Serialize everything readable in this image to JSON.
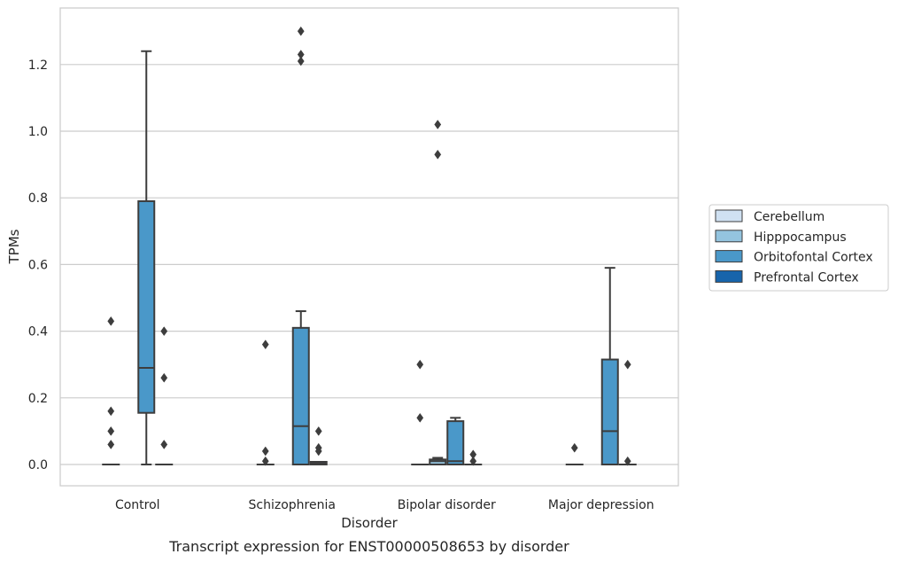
{
  "chart_data": {
    "type": "boxplot",
    "xlabel": "Disorder",
    "ylabel": "TPMs",
    "caption": "Transcript expression for ENST00000508653 by disorder",
    "categories": [
      "Control",
      "Schizophrenia",
      "Bipolar disorder",
      "Major depression"
    ],
    "ylim": [
      -0.065,
      1.365
    ],
    "yticks": [
      0.0,
      0.2,
      0.4,
      0.6,
      0.8,
      1.0,
      1.2
    ],
    "ytick_labels": [
      "0.0",
      "0.2",
      "0.4",
      "0.6",
      "0.8",
      "1.0",
      "1.2"
    ],
    "grid": "horizontal",
    "legend_position": "right",
    "series": [
      {
        "name": "Cerebellum",
        "color": "#d0e1f2",
        "boxes": [
          {
            "q1": 0,
            "median": 0,
            "q3": 0,
            "whisker_low": 0,
            "whisker_high": 0,
            "outliers": [
              0.43,
              0.16,
              0.1,
              0.06
            ]
          },
          {
            "q1": 0,
            "median": 0,
            "q3": 0,
            "whisker_low": 0,
            "whisker_high": 0,
            "outliers": [
              0.36,
              0.04,
              0.01
            ]
          },
          {
            "q1": 0,
            "median": 0,
            "q3": 0,
            "whisker_low": 0,
            "whisker_high": 0,
            "outliers": [
              0.3,
              0.14
            ]
          },
          {
            "q1": 0,
            "median": 0,
            "q3": 0,
            "whisker_low": 0,
            "whisker_high": 0,
            "outliers": [
              0.05
            ]
          }
        ]
      },
      {
        "name": "Hipppocampus",
        "color": "#94c4df",
        "boxes": [
          null,
          null,
          {
            "q1": 0,
            "median": 0.01,
            "q3": 0.015,
            "whisker_low": 0,
            "whisker_high": 0.02,
            "outliers": [
              1.02,
              0.93
            ]
          },
          null
        ]
      },
      {
        "name": "Orbitofontal Cortex",
        "color": "#4a98c9",
        "boxes": [
          {
            "q1": 0.155,
            "median": 0.29,
            "q3": 0.79,
            "whisker_low": 0,
            "whisker_high": 1.24,
            "outliers": []
          },
          {
            "q1": 0,
            "median": 0.115,
            "q3": 0.41,
            "whisker_low": 0,
            "whisker_high": 0.46,
            "outliers": [
              1.3,
              1.23,
              1.21
            ]
          },
          {
            "q1": 0,
            "median": 0.01,
            "q3": 0.13,
            "whisker_low": 0,
            "whisker_high": 0.14,
            "outliers": []
          },
          {
            "q1": 0,
            "median": 0.1,
            "q3": 0.315,
            "whisker_low": 0,
            "whisker_high": 0.59,
            "outliers": []
          }
        ]
      },
      {
        "name": "Prefrontal Cortex",
        "color": "#1764ab",
        "boxes": [
          {
            "q1": 0,
            "median": 0,
            "q3": 0,
            "whisker_low": 0,
            "whisker_high": 0,
            "outliers": [
              0.4,
              0.26,
              0.06
            ]
          },
          {
            "q1": 0,
            "median": 0.003,
            "q3": 0.008,
            "whisker_low": 0,
            "whisker_high": 0.008,
            "outliers": [
              0.1,
              0.05,
              0.04
            ]
          },
          {
            "q1": 0,
            "median": 0,
            "q3": 0,
            "whisker_low": 0,
            "whisker_high": 0,
            "outliers": [
              0.03,
              0.01
            ]
          },
          {
            "q1": 0,
            "median": 0,
            "q3": 0,
            "whisker_low": 0,
            "whisker_high": 0,
            "outliers": [
              0.3,
              0.01
            ]
          }
        ]
      }
    ]
  }
}
